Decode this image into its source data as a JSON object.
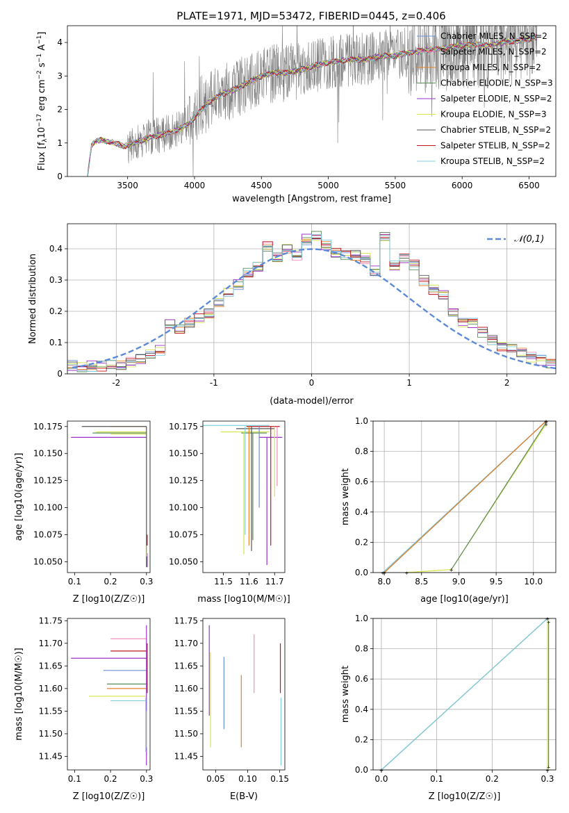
{
  "colors": {
    "series": [
      "#6b8fd6",
      "#f08fb8",
      "#e8822a",
      "#5b8c5a",
      "#9b30c8",
      "#d6e34a",
      "#555555",
      "#c0141e",
      "#7fd0e0"
    ],
    "normal_curve": "#5b8ad6",
    "data_gray": "#808080",
    "grid": "#b0b0b0"
  },
  "chart_data": [
    {
      "id": "spectrum",
      "type": "line",
      "title": "PLATE=1971, MJD=53472, FIBERID=0445, z=0.406",
      "xlabel": "wavelength [Angstrom, rest frame]",
      "ylabel": "Flux [f_λ 10^-17 erg cm^-2 s^-1 A^-1]",
      "xlim": [
        3050,
        6700
      ],
      "ylim": [
        0,
        4.5
      ],
      "xticks": [
        3500,
        4000,
        4500,
        5000,
        5500,
        6000,
        6500
      ],
      "yticks": [
        0,
        1,
        2,
        3,
        4
      ],
      "grid": false,
      "legend_position": "top-right",
      "series": [
        {
          "name": "Chabrier MILES, N_SSP=2",
          "color": "#6b8fd6"
        },
        {
          "name": "Salpeter MILES, N_SSP=2",
          "color": "#f08fb8"
        },
        {
          "name": "Kroupa MILES, N_SSP=2",
          "color": "#e8822a"
        },
        {
          "name": "Chabrier ELODIE, N_SSP=3",
          "color": "#5b8c5a"
        },
        {
          "name": "Salpeter ELODIE, N_SSP=2",
          "color": "#9b30c8"
        },
        {
          "name": "Kroupa ELODIE, N_SSP=3",
          "color": "#d6e34a"
        },
        {
          "name": "Chabrier STELIB, N_SSP=2",
          "color": "#555555"
        },
        {
          "name": "Salpeter STELIB, N_SSP=2",
          "color": "#c0141e"
        },
        {
          "name": "Kroupa STELIB, N_SSP=2",
          "color": "#7fd0e0"
        }
      ],
      "model_curve": {
        "x": [
          3200,
          3230,
          3260,
          3300,
          3400,
          3480,
          3550,
          3650,
          3750,
          3850,
          3950,
          4000,
          4100,
          4200,
          4300,
          4400,
          4500,
          4600,
          4700,
          4800,
          4900,
          5000,
          5100,
          5200,
          5300,
          5400,
          5500,
          5600,
          5700,
          5800,
          5900,
          6000,
          6100,
          6200,
          6300,
          6400,
          6500,
          6550
        ],
        "y": [
          0,
          0.9,
          1.05,
          1.1,
          1.0,
          0.9,
          1.0,
          1.15,
          1.25,
          1.35,
          1.55,
          1.75,
          2.2,
          2.45,
          2.6,
          2.8,
          3.0,
          3.1,
          3.1,
          3.2,
          3.3,
          3.4,
          3.45,
          3.5,
          3.5,
          3.6,
          3.6,
          3.7,
          3.75,
          3.8,
          3.85,
          3.9,
          3.95,
          3.9,
          4.0,
          4.05,
          4.1,
          4.15
        ]
      }
    },
    {
      "id": "residuals",
      "type": "bar",
      "xlabel": "(data-model)/error",
      "ylabel": "Normed distribution",
      "xlim": [
        -2.5,
        2.5
      ],
      "ylim": [
        0,
        0.48
      ],
      "xticks": [
        -2,
        -1,
        0,
        1,
        2
      ],
      "yticks": [
        0.0,
        0.1,
        0.2,
        0.3,
        0.4
      ],
      "grid": true,
      "legend_position": "top-right",
      "legend": [
        "𝒩(0,1)"
      ],
      "bin_edges": [
        -2.5,
        -2.4,
        -2.3,
        -2.2,
        -2.1,
        -2.0,
        -1.9,
        -1.8,
        -1.7,
        -1.6,
        -1.5,
        -1.4,
        -1.3,
        -1.2,
        -1.1,
        -1.0,
        -0.9,
        -0.8,
        -0.7,
        -0.6,
        -0.5,
        -0.4,
        -0.3,
        -0.2,
        -0.1,
        0.0,
        0.1,
        0.2,
        0.3,
        0.4,
        0.5,
        0.6,
        0.7,
        0.8,
        0.9,
        1.0,
        1.1,
        1.2,
        1.3,
        1.4,
        1.5,
        1.6,
        1.7,
        1.8,
        1.9,
        2.0,
        2.1,
        2.2,
        2.3,
        2.4,
        2.5
      ],
      "heights": [
        0.025,
        0.02,
        0.025,
        0.025,
        0.03,
        0.025,
        0.035,
        0.045,
        0.06,
        0.075,
        0.16,
        0.14,
        0.16,
        0.175,
        0.19,
        0.225,
        0.26,
        0.285,
        0.32,
        0.34,
        0.405,
        0.37,
        0.4,
        0.38,
        0.43,
        0.44,
        0.41,
        0.385,
        0.38,
        0.38,
        0.37,
        0.33,
        0.44,
        0.345,
        0.37,
        0.35,
        0.3,
        0.27,
        0.255,
        0.2,
        0.165,
        0.165,
        0.135,
        0.11,
        0.09,
        0.085,
        0.07,
        0.055,
        0.045,
        0.035,
        0.025
      ],
      "normal_pdf": true
    },
    {
      "id": "age-vs-z",
      "type": "line",
      "xlabel": "Z [log10(Z/Z☉)]",
      "ylabel": "age [log10(age/yr)]",
      "xlim": [
        0.08,
        0.31
      ],
      "ylim": [
        10.04,
        10.18
      ],
      "xticks": [
        "0.1",
        "0.2",
        "0.3"
      ],
      "yticks": [
        "10.050",
        "10.075",
        "10.100",
        "10.125",
        "10.150",
        "10.175"
      ],
      "grid": false,
      "hlines": [
        {
          "x0": 0.2,
          "x1": 0.3,
          "y": 10.175,
          "c": 2
        },
        {
          "x0": 0.12,
          "x1": 0.3,
          "y": 10.175,
          "c": 6
        },
        {
          "x0": 0.16,
          "x1": 0.3,
          "y": 10.17,
          "c": 5
        },
        {
          "x0": 0.15,
          "x1": 0.3,
          "y": 10.169,
          "c": 3
        },
        {
          "x0": 0.2,
          "x1": 0.3,
          "y": 10.168,
          "c": 5
        },
        {
          "x0": 0.09,
          "x1": 0.3,
          "y": 10.165,
          "c": 4
        }
      ],
      "vlines": [
        {
          "x": 0.3,
          "y0": 10.045,
          "y1": 10.175,
          "c": 6
        },
        {
          "x": 0.302,
          "y0": 10.065,
          "y1": 10.075,
          "c": 7
        },
        {
          "x": 0.302,
          "y0": 10.045,
          "y1": 10.058,
          "c": 4
        },
        {
          "x": 0.301,
          "y0": 10.055,
          "y1": 10.065,
          "c": 5
        }
      ]
    },
    {
      "id": "age-vs-mass",
      "type": "line",
      "xlabel": "mass [log10(M/M☉)]",
      "ylabel": "",
      "xlim": [
        11.42,
        11.74
      ],
      "ylim": [
        10.04,
        10.18
      ],
      "xticks": [
        "11.5",
        "11.6",
        "11.7"
      ],
      "yticks": [
        "10.050",
        "10.075",
        "10.100",
        "10.125",
        "10.150",
        "10.175"
      ],
      "grid": false,
      "hlines": [
        {
          "x0": 11.42,
          "x1": 11.68,
          "y": 10.176,
          "c": 8
        },
        {
          "x0": 11.59,
          "x1": 11.72,
          "y": 10.175,
          "c": 7
        },
        {
          "x0": 11.55,
          "x1": 11.7,
          "y": 10.173,
          "c": 6
        },
        {
          "x0": 11.49,
          "x1": 11.68,
          "y": 10.17,
          "c": 5
        },
        {
          "x0": 11.57,
          "x1": 11.67,
          "y": 10.169,
          "c": 3
        },
        {
          "x0": 11.64,
          "x1": 11.73,
          "y": 10.165,
          "c": 4
        }
      ],
      "vlines": [
        {
          "x": 11.585,
          "y0": 10.075,
          "y1": 10.175,
          "c": 8
        },
        {
          "x": 11.58,
          "y0": 10.057,
          "y1": 10.17,
          "c": 5
        },
        {
          "x": 11.6,
          "y0": 10.065,
          "y1": 10.175,
          "c": 2
        },
        {
          "x": 11.61,
          "y0": 10.06,
          "y1": 10.175,
          "c": 6
        },
        {
          "x": 11.615,
          "y0": 10.07,
          "y1": 10.169,
          "c": 3
        },
        {
          "x": 11.64,
          "y0": 10.1,
          "y1": 10.175,
          "c": 0
        },
        {
          "x": 11.67,
          "y0": 10.047,
          "y1": 10.165,
          "c": 4
        },
        {
          "x": 11.685,
          "y0": 10.065,
          "y1": 10.175,
          "c": 7
        },
        {
          "x": 11.7,
          "y0": 10.11,
          "y1": 10.175,
          "c": 5
        },
        {
          "x": 11.71,
          "y0": 10.12,
          "y1": 10.175,
          "c": 1
        }
      ]
    },
    {
      "id": "weight-vs-age",
      "type": "line",
      "xlabel": "age [log10(age/yr)]",
      "ylabel": "mass weight",
      "xlim": [
        7.85,
        10.3
      ],
      "ylim": [
        0,
        1.0
      ],
      "xticks": [
        "8.0",
        "8.5",
        "9.0",
        "9.5",
        "10.0"
      ],
      "yticks": [
        "0.0",
        "0.2",
        "0.4",
        "0.6",
        "0.8",
        "1.0"
      ],
      "grid": true,
      "lines": [
        {
          "x": [
            7.98,
            10.17
          ],
          "y": [
            0.0,
            1.0
          ],
          "c": 8
        },
        {
          "x": [
            8.0,
            10.17
          ],
          "y": [
            0.0,
            1.0
          ],
          "c": 6
        },
        {
          "x": [
            8.0,
            10.17
          ],
          "y": [
            0.0,
            1.0
          ],
          "c": 2
        },
        {
          "x": [
            8.3,
            8.9,
            10.17
          ],
          "y": [
            0.0,
            0.02,
            0.98
          ],
          "c": 5
        },
        {
          "x": [
            8.9,
            10.17
          ],
          "y": [
            0.02,
            0.99
          ],
          "c": 3
        }
      ]
    },
    {
      "id": "mass-vs-z",
      "type": "line",
      "xlabel": "Z [log10(Z/Z☉)]",
      "ylabel": "mass [log10(M/M☉)]",
      "xlim": [
        0.08,
        0.31
      ],
      "ylim": [
        11.42,
        11.755
      ],
      "xticks": [
        "0.1",
        "0.2",
        "0.3"
      ],
      "yticks": [
        "11.45",
        "11.50",
        "11.55",
        "11.60",
        "11.65",
        "11.70",
        "11.75"
      ],
      "grid": false,
      "hlines": [
        {
          "x0": 0.2,
          "x1": 0.3,
          "y": 11.71,
          "c": 1
        },
        {
          "x0": 0.2,
          "x1": 0.3,
          "y": 11.683,
          "c": 7
        },
        {
          "x0": 0.09,
          "x1": 0.3,
          "y": 11.667,
          "c": 4
        },
        {
          "x0": 0.18,
          "x1": 0.3,
          "y": 11.64,
          "c": 0
        },
        {
          "x0": 0.19,
          "x1": 0.3,
          "y": 11.61,
          "c": 3
        },
        {
          "x0": 0.19,
          "x1": 0.3,
          "y": 11.6,
          "c": 2
        },
        {
          "x0": 0.14,
          "x1": 0.3,
          "y": 11.583,
          "c": 5
        },
        {
          "x0": 0.2,
          "x1": 0.3,
          "y": 11.573,
          "c": 8
        }
      ],
      "vlines": [
        {
          "x": 0.3,
          "y0": 11.43,
          "y1": 11.74,
          "c": 4
        },
        {
          "x": 0.302,
          "y0": 11.59,
          "y1": 11.7,
          "c": 7
        },
        {
          "x": 0.298,
          "y0": 11.46,
          "y1": 11.58,
          "c": 8
        },
        {
          "x": 0.301,
          "y0": 11.47,
          "y1": 11.55,
          "c": 5
        }
      ]
    },
    {
      "id": "mass-vs-ebv",
      "type": "line",
      "xlabel": "E(B-V)",
      "ylabel": "",
      "xlim": [
        0.03,
        0.158
      ],
      "ylim": [
        11.42,
        11.755
      ],
      "xticks": [
        "0.05",
        "0.10",
        "0.15"
      ],
      "yticks": [
        "11.45",
        "11.50",
        "11.55",
        "11.60",
        "11.65",
        "11.70",
        "11.75"
      ],
      "grid": false,
      "vlines": [
        {
          "x": 0.04,
          "y0": 11.54,
          "y1": 11.74,
          "c": 4
        },
        {
          "x": 0.042,
          "y0": 11.47,
          "y1": 11.68,
          "c": 5
        },
        {
          "x": 0.063,
          "y0": 11.51,
          "y1": 11.67,
          "c": 0
        },
        {
          "x": 0.09,
          "y0": 11.47,
          "y1": 11.63,
          "c": 2
        },
        {
          "x": 0.11,
          "y0": 11.59,
          "y1": 11.72,
          "c": 1
        },
        {
          "x": 0.151,
          "y0": 11.59,
          "y1": 11.7,
          "c": 7
        },
        {
          "x": 0.152,
          "y0": 11.43,
          "y1": 11.58,
          "c": 8
        }
      ]
    },
    {
      "id": "weight-vs-z",
      "type": "line",
      "xlabel": "Z [log10(Z/Z☉)]",
      "ylabel": "mass weight",
      "xlim": [
        -0.015,
        0.315
      ],
      "ylim": [
        0,
        1.0
      ],
      "xticks": [
        "0.0",
        "0.1",
        "0.2",
        "0.3"
      ],
      "yticks": [
        "0.0",
        "0.2",
        "0.4",
        "0.6",
        "0.8",
        "1.0"
      ],
      "grid": true,
      "lines": [
        {
          "x": [
            0.0,
            0.3
          ],
          "y": [
            0.0,
            1.0
          ],
          "c": 6
        },
        {
          "x": [
            0.0,
            0.3
          ],
          "y": [
            0.0,
            1.0
          ],
          "c": 8
        },
        {
          "x": [
            0.3,
            0.3
          ],
          "y": [
            0.0,
            1.0
          ],
          "c": 5
        },
        {
          "x": [
            0.302,
            0.302
          ],
          "y": [
            0.02,
            0.98
          ],
          "c": 3
        }
      ]
    }
  ]
}
